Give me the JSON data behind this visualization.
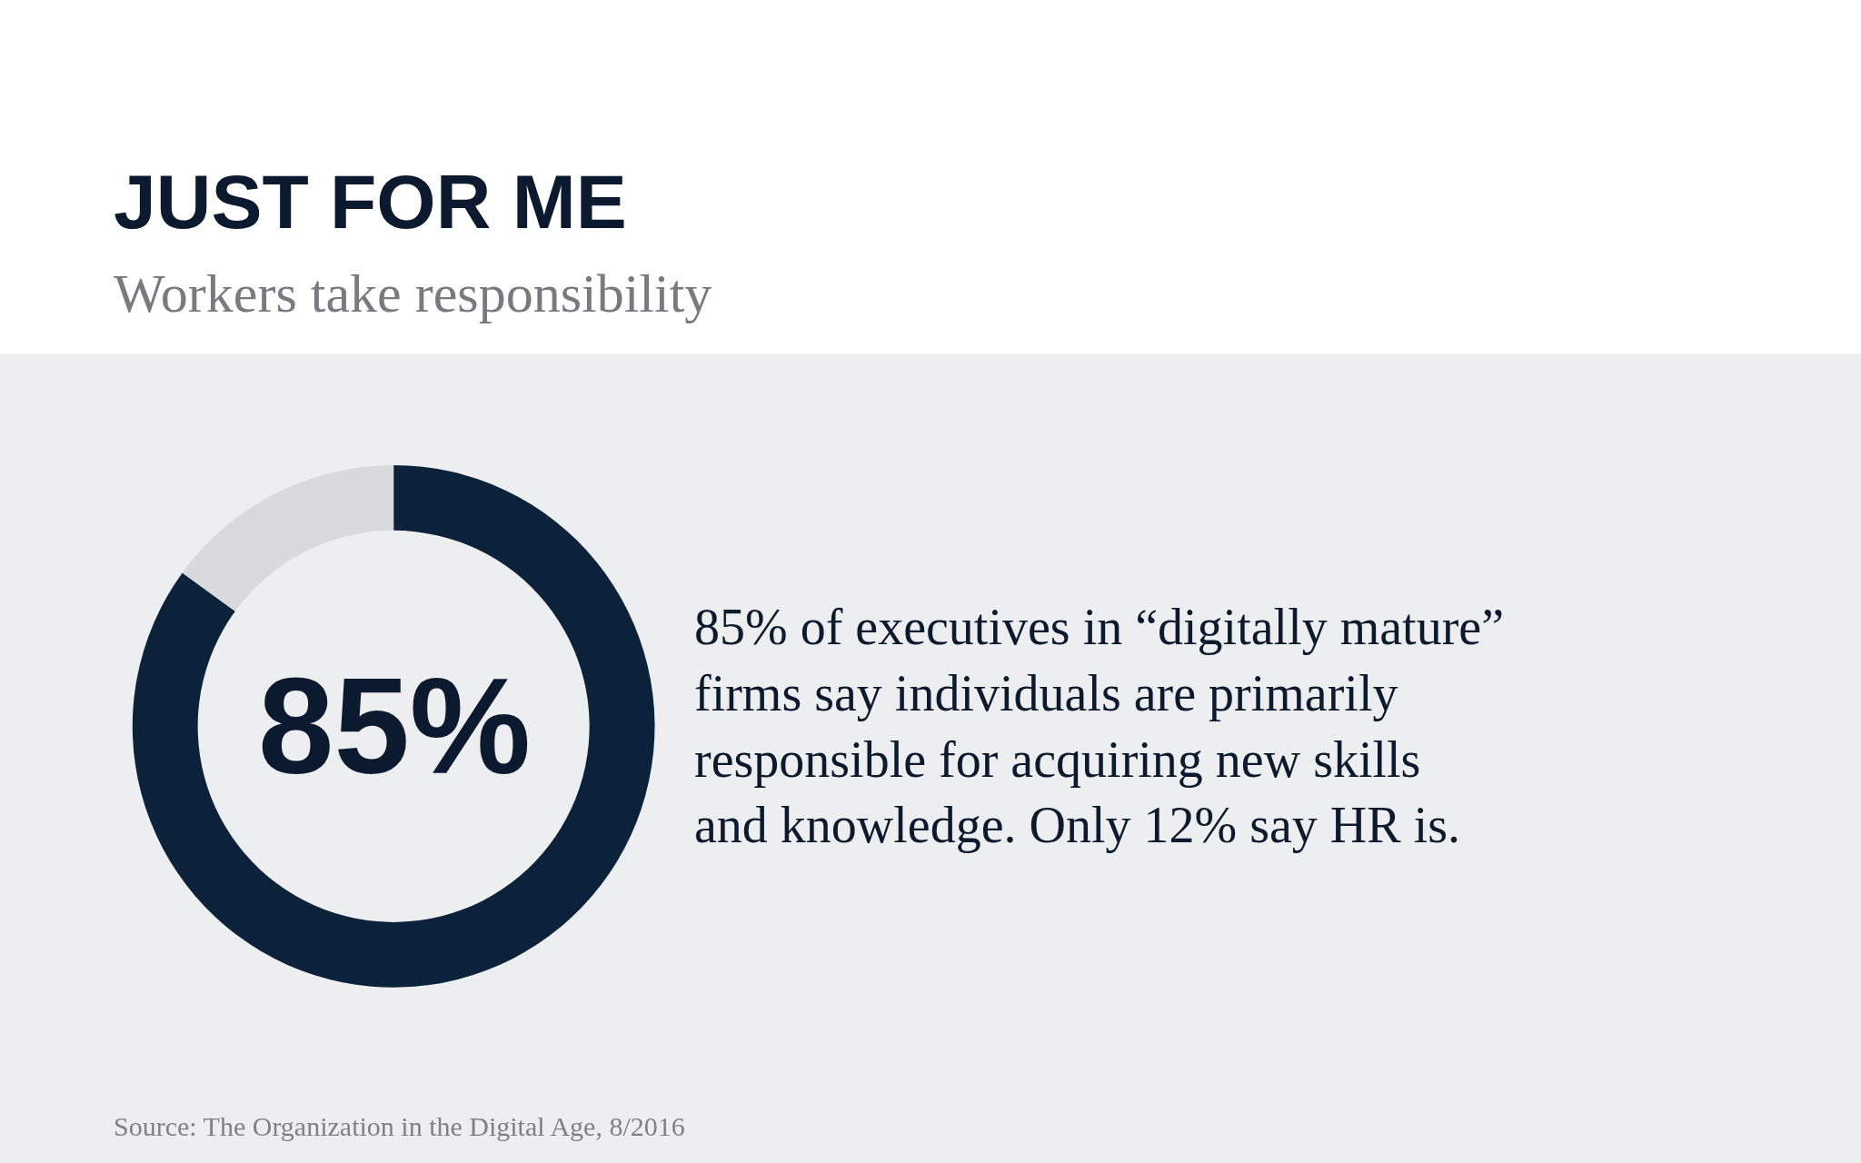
{
  "chart_data": {
    "type": "donut",
    "title": "JUST FOR ME",
    "subtitle": "Workers take responsibility",
    "categories": [
      null,
      null
    ],
    "values": [
      85,
      15
    ],
    "colors": [
      "#0b223a",
      "#d8dadc"
    ],
    "annotations": [
      "85%",
      "85% of executives in “digitally mature”\nfirms say individuals are primarily\nresponsible for acquiring new skills\nand knowledge. Only 12% say HR is.",
      "Source: The Organization in the Digital Age, 8/2016"
    ],
    "legend": false
  }
}
